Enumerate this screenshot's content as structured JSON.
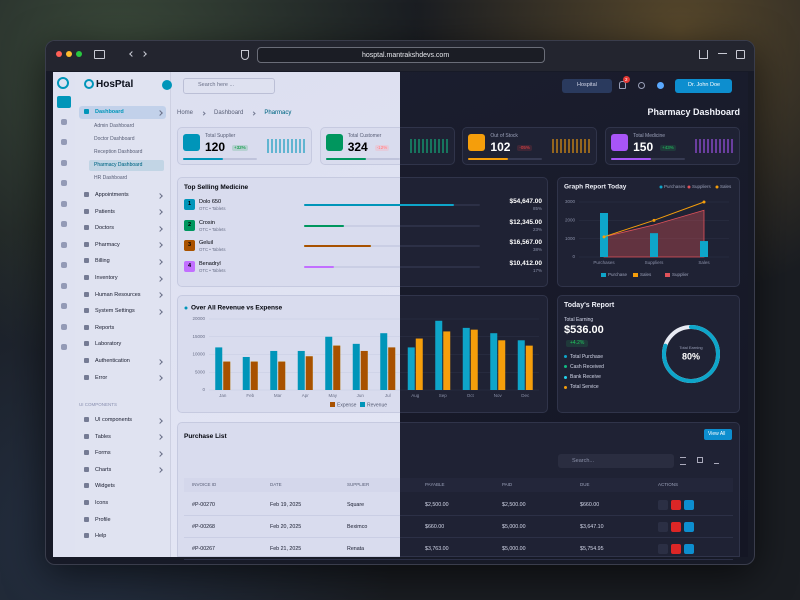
{
  "browser": {
    "url": "hosptal.mantrakshdevs.com"
  },
  "brand": "HosPtal",
  "search_placeholder": "Search here ...",
  "topbar": {
    "hospital": "Hospital",
    "notifications": "2",
    "user": "Dr. John Doe"
  },
  "breadcrumb": [
    "Home",
    "Dashboard",
    "Pharmacy"
  ],
  "page_title": "Pharmacy Dashboard",
  "sidebar": {
    "menu": [
      "Dashboard",
      "Appointments",
      "Patients",
      "Doctors",
      "Pharmacy",
      "Billing",
      "Inventory",
      "Human Resources",
      "System Settings",
      "Reports",
      "Laboratory",
      "Authentication",
      "Error"
    ],
    "dashboard_submenu": [
      "Admin Dashboard",
      "Doctor Dashboard",
      "Reception Dashboard",
      "Pharmacy Dashboard",
      "HR Dashboard"
    ],
    "components_title": "UI COMPONENTS",
    "components": [
      "UI components",
      "Tables",
      "Forms",
      "Charts",
      "Widgets",
      "Icons",
      "Profile",
      "Help"
    ]
  },
  "stats": [
    {
      "label": "Total Supplier",
      "value": "120",
      "change": "+32%",
      "color": "#0ea5c9"
    },
    {
      "label": "Total Customer",
      "value": "324",
      "change": "-12%",
      "color": "#10b981"
    },
    {
      "label": "Out of Stock",
      "value": "102",
      "change": "-05%",
      "color": "#f59e0b"
    },
    {
      "label": "Total Medicine",
      "value": "150",
      "change": "+43%",
      "color": "#a855f7"
    }
  ],
  "top_selling": {
    "title": "Top Selling Medicine",
    "items": [
      {
        "rank": "1",
        "name": "Dolo 650",
        "type": "OTC • Tablets",
        "amount": "$54,647.00",
        "share": "85%",
        "color": "#0ea5c9"
      },
      {
        "rank": "2",
        "name": "Crosin",
        "type": "OTC • Tablets",
        "amount": "$12,345.00",
        "share": "23%",
        "color": "#10b981"
      },
      {
        "rank": "3",
        "name": "Geluil",
        "type": "OTC • Tablets",
        "amount": "$16,567.00",
        "share": "38%",
        "color": "#f59e0b"
      },
      {
        "rank": "4",
        "name": "Benadryl",
        "type": "OTC • Tablets",
        "amount": "$10,412.00",
        "share": "17%",
        "color": "#a855f7"
      }
    ]
  },
  "todays_report": {
    "title": "Today's Report",
    "label": "Total Earning",
    "amount": "$536.00",
    "change": "+4.2%",
    "items": [
      {
        "label": "Total Purchase",
        "color": "#0ea5c9"
      },
      {
        "label": "Cash Received",
        "color": "#10b981"
      },
      {
        "label": "Bank Receive",
        "color": "#22d3ee"
      },
      {
        "label": "Total Service",
        "color": "#f59e0b"
      }
    ]
  },
  "purchase_list": {
    "title": "Purchase List",
    "button": "View All",
    "search_placeholder": "Search...",
    "columns": [
      "INVOICE ID",
      "DATE",
      "SUPPLIER",
      "PAYABLE",
      "PAID",
      "DUE",
      "ACTIONS"
    ],
    "rows": [
      [
        "#P-00270",
        "Feb 19, 2025",
        "Square",
        "$2,500.00",
        "$2,500.00",
        "$660.00"
      ],
      [
        "#P-00268",
        "Feb 20, 2025",
        "Beximco",
        "$660.00",
        "$5,000.00",
        "$3,647.10"
      ],
      [
        "#P-00267",
        "Feb 21, 2025",
        "Renata",
        "$3,763.00",
        "$5,000.00",
        "$5,754.95"
      ]
    ]
  },
  "chart_data": [
    {
      "type": "bar",
      "title": "Over All Revenue vs Expense",
      "categories": [
        "Jan",
        "Feb",
        "Mar",
        "Apr",
        "May",
        "Jun",
        "Jul",
        "Aug",
        "Sep",
        "Oct",
        "Nov",
        "Dec"
      ],
      "series": [
        {
          "name": "Expense",
          "color": "#f59e0b",
          "values": [
            8000,
            8000,
            8000,
            9500,
            12500,
            11000,
            12000,
            14500,
            16500,
            17000,
            14000,
            12500
          ]
        },
        {
          "name": "Revenue",
          "color": "#0ea5c9",
          "values": [
            12000,
            9300,
            11000,
            11000,
            15000,
            13000,
            16000,
            12000,
            19500,
            17500,
            16000,
            14000
          ]
        }
      ],
      "ylim": [
        0,
        20000
      ],
      "yticks": [
        0,
        5000,
        10000,
        15000,
        20000
      ],
      "grid": true
    },
    {
      "type": "combo",
      "title": "Graph Report Today",
      "legend_top": [
        {
          "name": "Purchases",
          "color": "#0ea5c9"
        },
        {
          "name": "Suppliers",
          "color": "#e0525a"
        },
        {
          "name": "Sales",
          "color": "#f59e0b"
        }
      ],
      "categories": [
        "Purchases",
        "Suppliers",
        "Sales"
      ],
      "series": [
        {
          "name": "Purchase",
          "kind": "bar",
          "color": "#0ea5c9",
          "values": [
            2400,
            1300,
            870
          ]
        },
        {
          "name": "Sales",
          "kind": "line",
          "color": "#f59e0b",
          "values": [
            1100,
            2000,
            3000
          ]
        },
        {
          "name": "Supplier",
          "kind": "area",
          "color": "#e0525a",
          "values": [
            1100,
            1750,
            2550
          ]
        }
      ],
      "ylim": [
        0,
        3000
      ],
      "yticks": [
        0,
        1000,
        2000,
        3000
      ],
      "grid": true
    },
    {
      "type": "donut",
      "label": "Total Earning",
      "value": 80,
      "value_label": "80%",
      "ylim": [
        0,
        100
      ],
      "color": "#0ea5c9"
    }
  ]
}
